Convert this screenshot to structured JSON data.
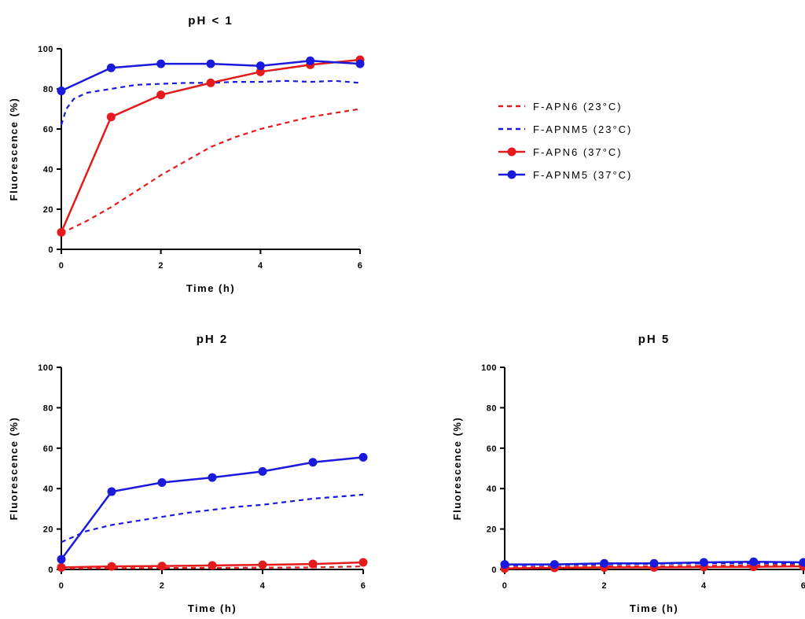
{
  "colors": {
    "red": "#e41a1c",
    "blue": "#1a1adc",
    "axis": "#000000"
  },
  "chart_data": [
    {
      "type": "line",
      "title": "pH < 1",
      "xlabel": "Time (h)",
      "ylabel": "Fluorescence (%)",
      "xlim": [
        0,
        6
      ],
      "ylim": [
        0,
        100
      ],
      "xticks": [
        "0",
        "2",
        "4",
        "6"
      ],
      "yticks": [
        "0",
        "20",
        "40",
        "60",
        "80",
        "100"
      ],
      "grid": false,
      "series": [
        {
          "name": "F-APN6 (23°C)",
          "color": "red",
          "style": "dashed",
          "x": [
            0,
            0.5,
            1,
            1.5,
            2,
            2.5,
            3,
            3.5,
            4,
            4.5,
            5,
            5.5,
            6
          ],
          "y": [
            8,
            14,
            21,
            29,
            37,
            44,
            51,
            56,
            60,
            63,
            66,
            68,
            70
          ]
        },
        {
          "name": "F-APNM5 (23°C)",
          "color": "blue",
          "style": "dashed",
          "x": [
            0,
            0.1,
            0.25,
            0.5,
            0.75,
            1,
            1.25,
            1.5,
            2,
            2.5,
            3,
            3.5,
            4,
            4.5,
            5,
            5.5,
            6
          ],
          "y": [
            62,
            70,
            75,
            78,
            79,
            80,
            81,
            82,
            82.5,
            83,
            83,
            83.5,
            83.5,
            84,
            83.5,
            84,
            83
          ]
        },
        {
          "name": "F-APN6 (37°C)",
          "color": "red",
          "style": "solid-marker",
          "x": [
            0,
            1,
            2,
            3,
            4,
            5,
            6
          ],
          "y": [
            8.5,
            66,
            77,
            83,
            88.5,
            92,
            94.5
          ]
        },
        {
          "name": "F-APNM5 (37°C)",
          "color": "blue",
          "style": "solid-marker",
          "x": [
            0,
            1,
            2,
            3,
            4,
            5,
            6
          ],
          "y": [
            79,
            90.5,
            92.5,
            92.5,
            91.5,
            94,
            92.5
          ]
        }
      ]
    },
    {
      "type": "line",
      "title": "pH 2",
      "xlabel": "Time (h)",
      "ylabel": "Fluorescence (%)",
      "xlim": [
        0,
        6
      ],
      "ylim": [
        0,
        100
      ],
      "xticks": [
        "0",
        "2",
        "4",
        "6"
      ],
      "yticks": [
        "0",
        "20",
        "40",
        "60",
        "80",
        "100"
      ],
      "grid": false,
      "series": [
        {
          "name": "F-APN6 (23°C)",
          "color": "red",
          "style": "dashed",
          "x": [
            0,
            1,
            2,
            3,
            4,
            5,
            6
          ],
          "y": [
            0.5,
            0.6,
            0.7,
            0.8,
            0.9,
            1.0,
            1.5
          ]
        },
        {
          "name": "F-APNM5 (23°C)",
          "color": "blue",
          "style": "dashed",
          "x": [
            0,
            0.5,
            1,
            1.5,
            2,
            2.5,
            3,
            3.5,
            4,
            4.5,
            5,
            5.5,
            6
          ],
          "y": [
            13.5,
            19,
            22,
            24,
            26,
            28,
            29.5,
            31,
            32,
            33.5,
            35,
            36,
            37
          ]
        },
        {
          "name": "F-APN6 (37°C)",
          "color": "red",
          "style": "solid-marker",
          "x": [
            0,
            1,
            2,
            3,
            4,
            5,
            6
          ],
          "y": [
            1,
            1.5,
            1.7,
            2,
            2.3,
            2.7,
            3.5
          ]
        },
        {
          "name": "F-APNM5 (37°C)",
          "color": "blue",
          "style": "solid-marker",
          "x": [
            0,
            1,
            2,
            3,
            4,
            5,
            6
          ],
          "y": [
            5,
            38.5,
            43,
            45.5,
            48.5,
            53,
            55.5
          ]
        }
      ]
    },
    {
      "type": "line",
      "title": "pH 5",
      "xlabel": "Time (h)",
      "ylabel": "Fluorescence (%)",
      "xlim": [
        0,
        6
      ],
      "ylim": [
        0,
        100
      ],
      "xticks": [
        "0",
        "2",
        "4",
        "6"
      ],
      "yticks": [
        "0",
        "20",
        "40",
        "60",
        "80",
        "100"
      ],
      "grid": false,
      "series": [
        {
          "name": "F-APN6 (23°C)",
          "color": "red",
          "style": "dashed",
          "x": [
            0,
            1,
            2,
            3,
            4,
            5,
            6
          ],
          "y": [
            1,
            1.2,
            1.5,
            1.6,
            1.8,
            2.0,
            2.2
          ]
        },
        {
          "name": "F-APNM5 (23°C)",
          "color": "blue",
          "style": "dashed",
          "x": [
            0,
            1,
            2,
            3,
            4,
            5,
            6
          ],
          "y": [
            2,
            2.2,
            2.5,
            2.8,
            3.0,
            3.0,
            3.0
          ]
        },
        {
          "name": "F-APN6 (37°C)",
          "color": "red",
          "style": "solid-marker",
          "x": [
            0,
            1,
            2,
            3,
            4,
            5,
            6
          ],
          "y": [
            0.5,
            0.8,
            1,
            1,
            1.2,
            1.3,
            1.5
          ]
        },
        {
          "name": "F-APNM5 (37°C)",
          "color": "blue",
          "style": "solid-marker",
          "x": [
            0,
            1,
            2,
            3,
            4,
            5,
            6
          ],
          "y": [
            2.5,
            2.5,
            3,
            3,
            3.5,
            3.8,
            3.5
          ]
        }
      ]
    }
  ],
  "legend": {
    "placement": "right of top panel",
    "entries": [
      {
        "label": "F-APN6 (23°C)",
        "color": "red",
        "style": "dashed"
      },
      {
        "label": "F-APNM5 (23°C)",
        "color": "blue",
        "style": "dashed"
      },
      {
        "label": "F-APN6 (37°C)",
        "color": "red",
        "style": "solid-marker"
      },
      {
        "label": "F-APNM5 (37°C)",
        "color": "blue",
        "style": "solid-marker"
      }
    ]
  }
}
